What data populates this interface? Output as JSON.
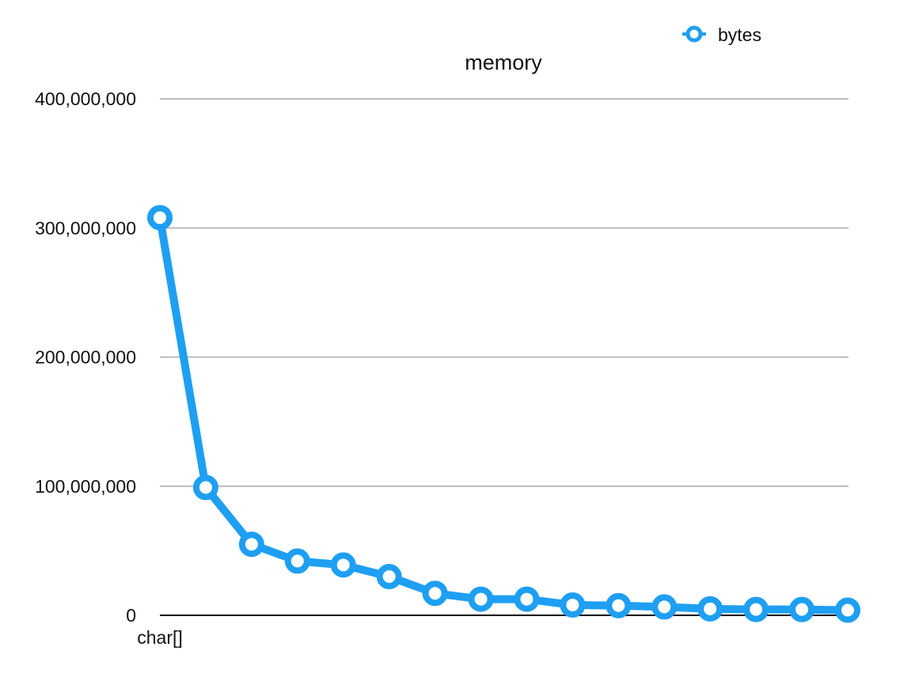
{
  "chart_data": {
    "type": "line",
    "title": "memory",
    "categories": [
      "char[]",
      "",
      "",
      "",
      "",
      "",
      "",
      "",
      "",
      "",
      "",
      "",
      "",
      "",
      "",
      ""
    ],
    "series": [
      {
        "name": "bytes",
        "values": [
          308000000,
          99000000,
          55000000,
          42000000,
          39000000,
          30000000,
          17000000,
          12500000,
          12500000,
          8000000,
          7500000,
          6500000,
          5000000,
          4500000,
          4500000,
          4000000
        ]
      }
    ],
    "ylim": [
      0,
      400000000
    ],
    "yticks": [
      0,
      100000000,
      200000000,
      300000000,
      400000000
    ],
    "ytick_labels": [
      "0",
      "100,000,000",
      "200,000,000",
      "300,000,000",
      "400,000,000"
    ],
    "grid": true,
    "legend": "top-right",
    "colors": {
      "series": "#1E9FF2",
      "grid": "#BBBBBB",
      "axis": "#000000",
      "marker_fill": "#FFFFFF"
    }
  }
}
